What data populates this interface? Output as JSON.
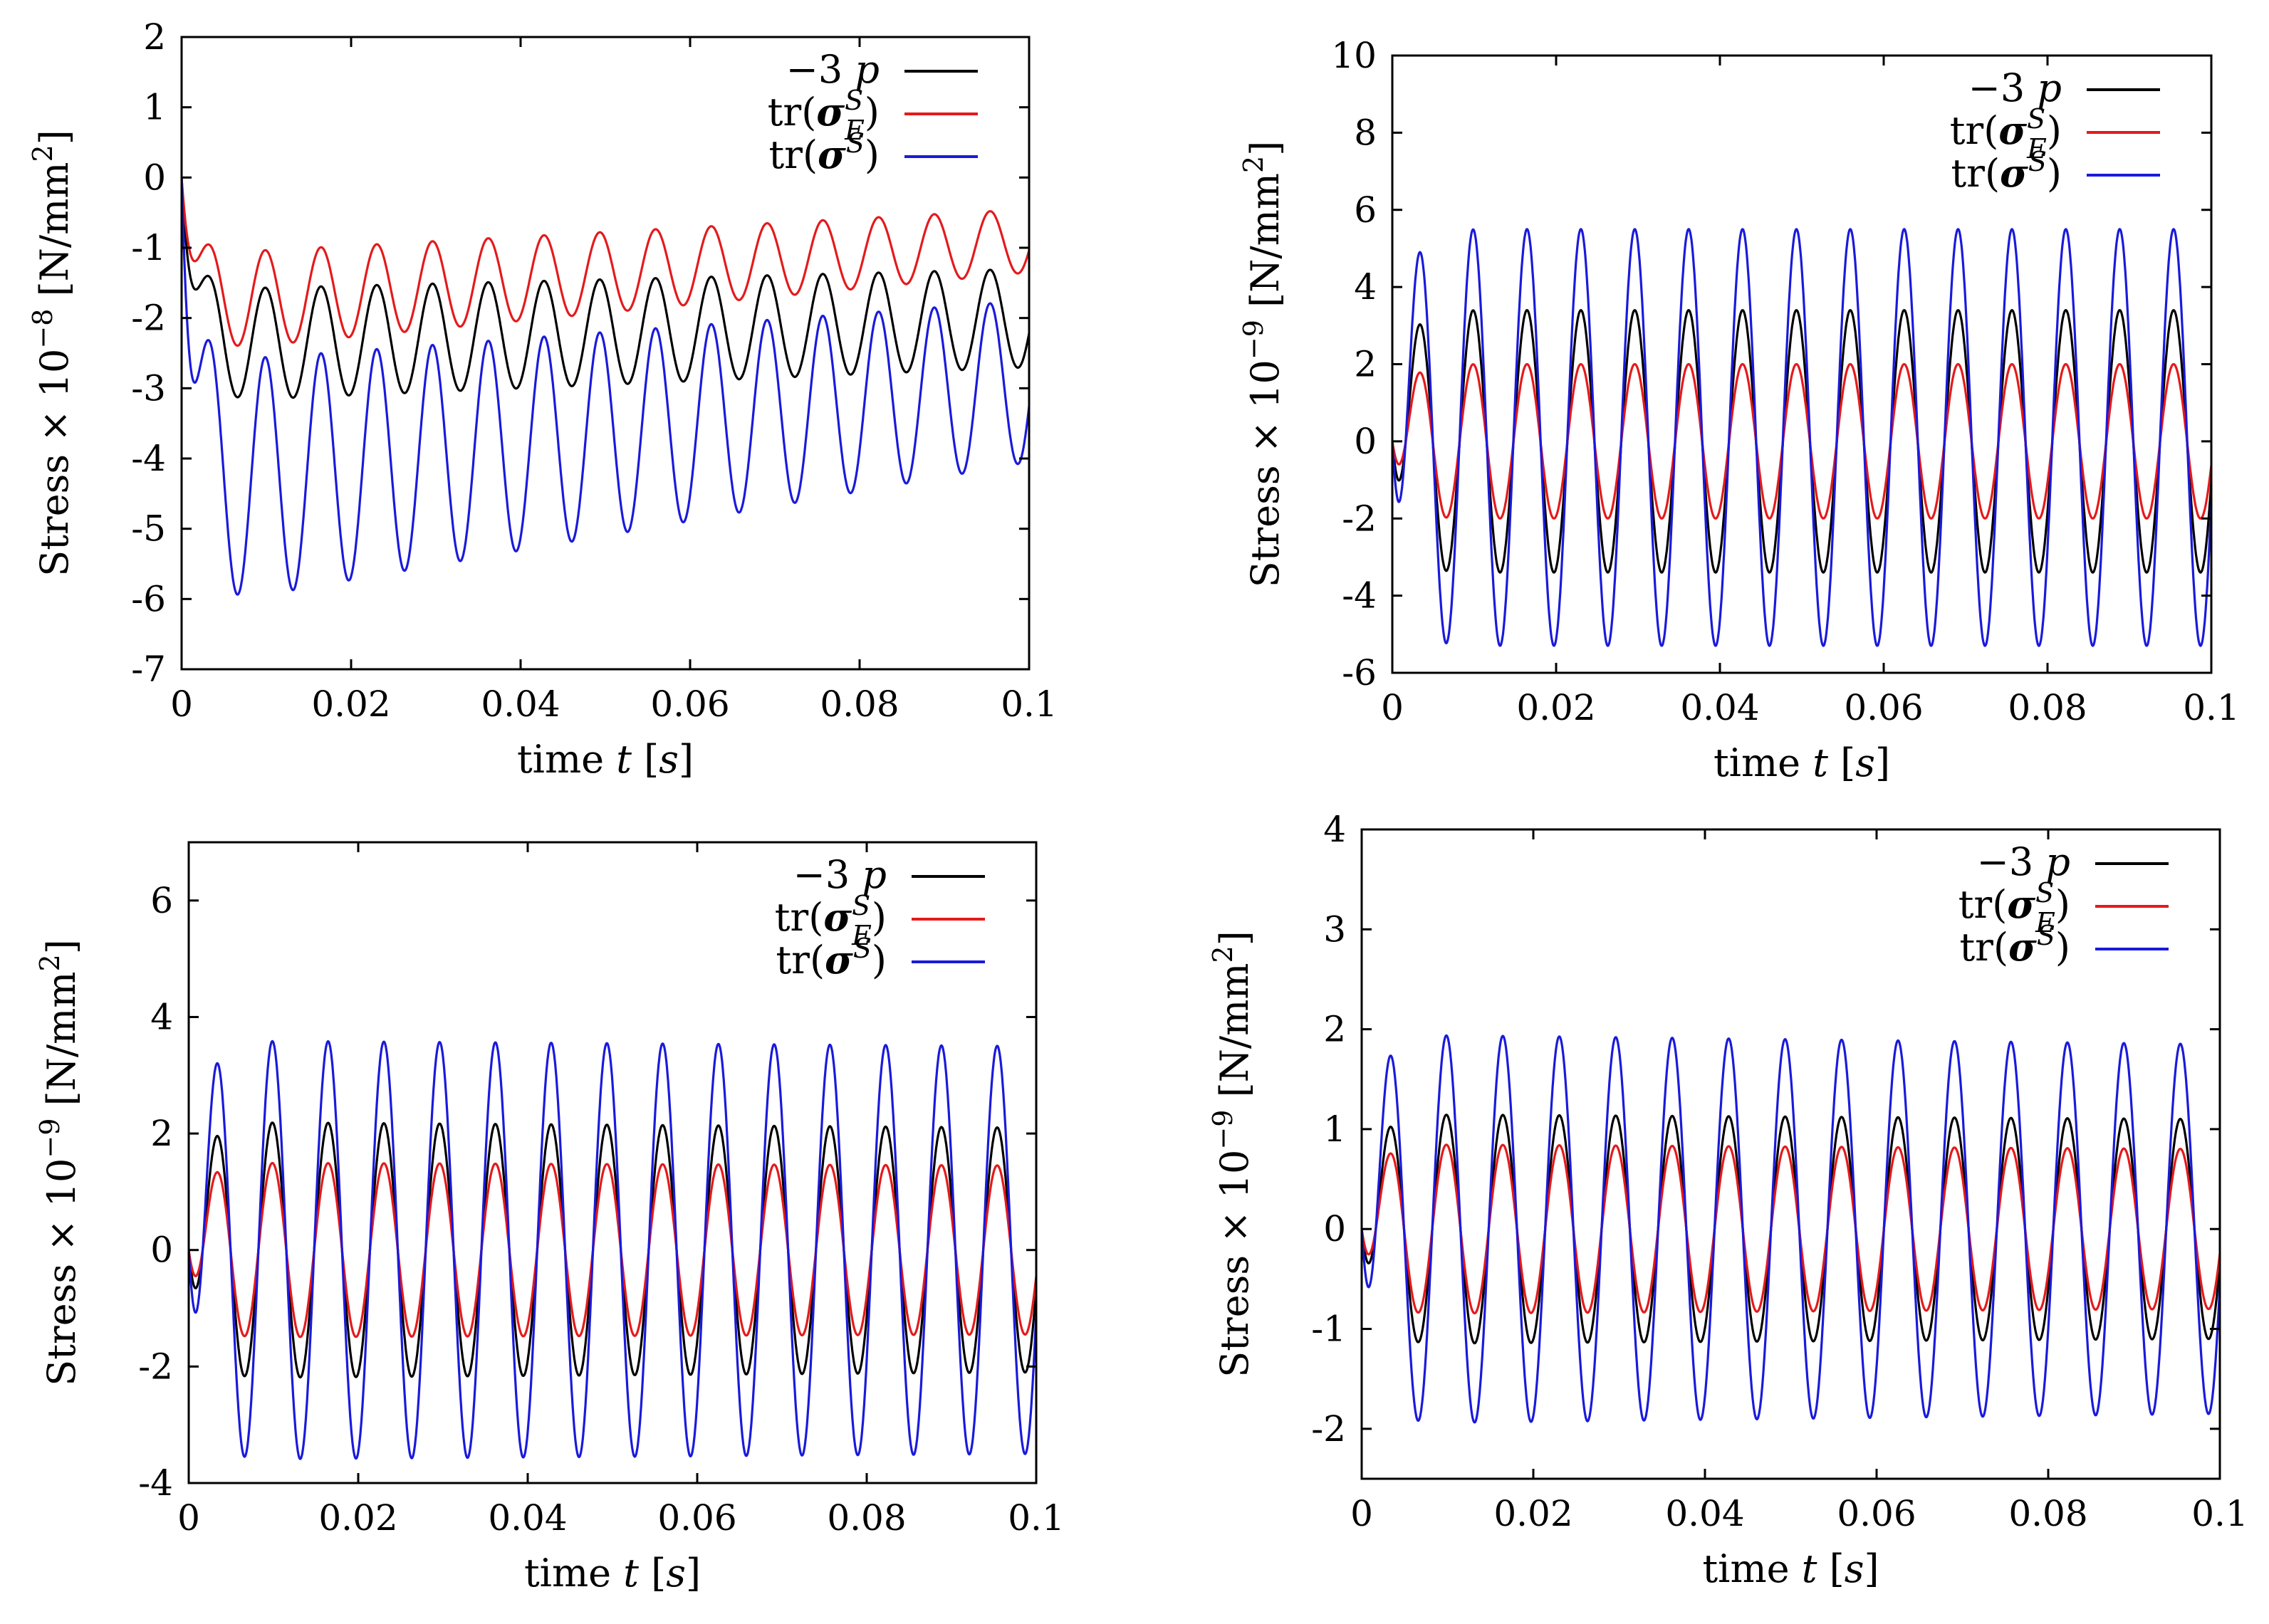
{
  "colors": {
    "black": "#000000",
    "red": "#e41a1c",
    "blue": "#1a1adb"
  },
  "chart_data": [
    {
      "type": "line",
      "panel": "top-left",
      "xlabel": "time t [s]",
      "ylabel": "Stress × 10⁻⁸ [N/mm²]",
      "xlim": [
        0,
        0.1
      ],
      "ylim": [
        -7,
        2
      ],
      "x_ticks": [
        "0",
        "0.02",
        "0.04",
        "0.06",
        "0.08",
        "0.1"
      ],
      "y_ticks": [
        "-7",
        "-6",
        "-5",
        "-4",
        "-3",
        "-2",
        "-1",
        "0",
        "1",
        "2"
      ],
      "legend_position": "top-right",
      "legend": [
        "−3 p",
        "tr(σ^S_E)",
        "tr(σ^S)"
      ],
      "series": [
        {
          "name": "−3 p",
          "color": "black",
          "mean_start": -2.4,
          "mean_end": -2.0,
          "amp_start": 0.8,
          "amp_end": 0.7,
          "frequency_hz": 152
        },
        {
          "name": "tr(σ^S_E)",
          "color": "red",
          "mean_start": -1.8,
          "mean_end": -0.9,
          "amp_start": 0.7,
          "amp_end": 0.45,
          "frequency_hz": 152
        },
        {
          "name": "tr(σ^S)",
          "color": "blue",
          "mean_start": -4.4,
          "mean_end": -2.9,
          "amp_start": 1.75,
          "amp_end": 1.15,
          "frequency_hz": 152
        }
      ]
    },
    {
      "type": "line",
      "panel": "top-right",
      "xlabel": "time t [s]",
      "ylabel": "Stress × 10⁻⁹ [N/mm²]",
      "xlim": [
        0,
        0.1
      ],
      "ylim": [
        -6,
        10
      ],
      "x_ticks": [
        "0",
        "0.02",
        "0.04",
        "0.06",
        "0.08",
        "0.1"
      ],
      "y_ticks": [
        "-6",
        "-4",
        "-2",
        "0",
        "2",
        "4",
        "6",
        "8",
        "10"
      ],
      "legend_position": "top-right",
      "legend": [
        "−3 p",
        "tr(σ^S_E)",
        "tr(σ^S)"
      ],
      "series": [
        {
          "name": "−3 p",
          "color": "black",
          "mean_start": 0,
          "mean_end": 0,
          "amp_start": 3.4,
          "amp_end": 3.4,
          "frequency_hz": 152
        },
        {
          "name": "tr(σ^S_E)",
          "color": "red",
          "mean_start": 0,
          "mean_end": 0,
          "amp_start": 2.0,
          "amp_end": 2.0,
          "frequency_hz": 152
        },
        {
          "name": "tr(σ^S)",
          "color": "blue",
          "mean_start": 0.1,
          "mean_end": 0.1,
          "amp_start": 5.4,
          "amp_end": 5.4,
          "frequency_hz": 152
        }
      ]
    },
    {
      "type": "line",
      "panel": "bottom-left",
      "xlabel": "time t [s]",
      "ylabel": "Stress × 10⁻⁹ [N/mm²]",
      "xlim": [
        0,
        0.1
      ],
      "ylim": [
        -4,
        7
      ],
      "x_ticks": [
        "0",
        "0.02",
        "0.04",
        "0.06",
        "0.08",
        "0.1"
      ],
      "y_ticks": [
        "-4",
        "-2",
        "0",
        "2",
        "4",
        "6"
      ],
      "legend_position": "top-right",
      "legend": [
        "−3 p",
        "tr(σ^S_E)",
        "tr(σ^S)"
      ],
      "series": [
        {
          "name": "−3 p",
          "color": "black",
          "mean_start": 0,
          "mean_end": 0,
          "amp_start": 2.2,
          "amp_end": 2.1,
          "frequency_hz": 152
        },
        {
          "name": "tr(σ^S_E)",
          "color": "red",
          "mean_start": 0,
          "mean_end": 0,
          "amp_start": 1.5,
          "amp_end": 1.45,
          "frequency_hz": 152
        },
        {
          "name": "tr(σ^S)",
          "color": "blue",
          "mean_start": 0,
          "mean_end": 0,
          "amp_start": 3.6,
          "amp_end": 3.5,
          "frequency_hz": 152
        }
      ]
    },
    {
      "type": "line",
      "panel": "bottom-right",
      "xlabel": "time t [s]",
      "ylabel": "Stress × 10⁻⁹ [N/mm²]",
      "xlim": [
        0,
        0.1
      ],
      "ylim": [
        -2.5,
        4
      ],
      "x_ticks": [
        "0",
        "0.02",
        "0.04",
        "0.06",
        "0.08",
        "0.1"
      ],
      "y_ticks": [
        "-2",
        "-1",
        "0",
        "1",
        "2",
        "3",
        "4"
      ],
      "legend_position": "top-right",
      "legend": [
        "−3 p",
        "tr(σ^S_E)",
        "tr(σ^S)"
      ],
      "series": [
        {
          "name": "−3 p",
          "color": "black",
          "mean_start": 0,
          "mean_end": 0,
          "amp_start": 1.15,
          "amp_end": 1.1,
          "frequency_hz": 152
        },
        {
          "name": "tr(σ^S_E)",
          "color": "red",
          "mean_start": 0,
          "mean_end": 0,
          "amp_start": 0.85,
          "amp_end": 0.8,
          "frequency_hz": 152
        },
        {
          "name": "tr(σ^S)",
          "color": "blue",
          "mean_start": 0,
          "mean_end": 0,
          "amp_start": 1.95,
          "amp_end": 1.85,
          "frequency_hz": 152
        }
      ]
    }
  ]
}
